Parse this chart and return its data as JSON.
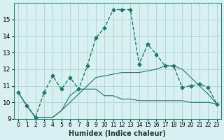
{
  "xlabel": "Humidex (Indice chaleur)",
  "ylabel": "",
  "background_color": "#d8f0f0",
  "grid_color": "#b0d8d8",
  "line_color": "#1a7a6a",
  "x_values": [
    0,
    1,
    2,
    3,
    4,
    5,
    6,
    7,
    8,
    9,
    10,
    11,
    12,
    13,
    14,
    15,
    16,
    17,
    18,
    19,
    20,
    21,
    22,
    23
  ],
  "series1": [
    10.6,
    9.8,
    9.1,
    10.6,
    11.6,
    10.8,
    11.5,
    10.8,
    12.2,
    13.9,
    14.5,
    15.6,
    15.6,
    15.6,
    12.3,
    13.5,
    12.9,
    12.2,
    12.2,
    10.9,
    11.0,
    11.1,
    10.9,
    9.9
  ],
  "series2": [
    10.6,
    9.8,
    9.1,
    9.1,
    9.1,
    9.5,
    10.4,
    10.8,
    10.8,
    10.8,
    10.4,
    10.4,
    10.2,
    10.2,
    10.1,
    10.1,
    10.1,
    10.1,
    10.1,
    10.1,
    10.0,
    10.0,
    10.0,
    9.9
  ],
  "series3": [
    10.6,
    9.8,
    9.1,
    9.1,
    9.1,
    9.5,
    10.0,
    10.5,
    11.0,
    11.5,
    11.6,
    11.7,
    11.8,
    11.8,
    11.8,
    11.9,
    12.0,
    12.2,
    12.2,
    12.0,
    11.5,
    11.0,
    10.5,
    9.9
  ],
  "ylim": [
    9,
    16
  ],
  "xlim": [
    0,
    23
  ],
  "yticks": [
    9,
    10,
    11,
    12,
    13,
    14,
    15
  ],
  "xtick_labels": [
    "0",
    "1",
    "2",
    "3",
    "4",
    "5",
    "6",
    "7",
    "8",
    "9",
    "10",
    "11",
    "12",
    "13",
    "14",
    "15",
    "16",
    "17",
    "18",
    "19",
    "20",
    "21",
    "22",
    "23"
  ]
}
